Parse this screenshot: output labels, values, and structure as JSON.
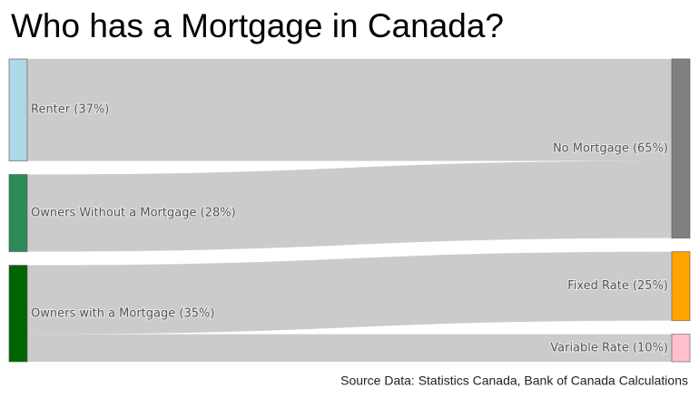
{
  "chart_data": {
    "type": "sankey",
    "title": "Who has a Mortgage in Canada?",
    "source_note": "Source Data: Statistics Canada, Bank of Canada Calculations",
    "nodes": [
      {
        "label": "Renter (37%)",
        "color": "#add8e6"
      },
      {
        "label": "Owners Without a Mortgage (28%)",
        "color": "#2e8b57"
      },
      {
        "label": "Owners with a Mortgage (35%)",
        "color": "#006400"
      },
      {
        "label": "No Mortgage (65%)",
        "color": "#808080"
      },
      {
        "label": "Fixed Rate (25%)",
        "color": "#ffa500"
      },
      {
        "label": "Variable Rate (10%)",
        "color": "#ffc0cb"
      }
    ],
    "links": [
      {
        "source": 0,
        "target": 3,
        "value": 37
      },
      {
        "source": 1,
        "target": 3,
        "value": 28
      },
      {
        "source": 2,
        "target": 4,
        "value": 25
      },
      {
        "source": 2,
        "target": 5,
        "value": 10
      }
    ],
    "link_color": "#c8c8c8"
  }
}
